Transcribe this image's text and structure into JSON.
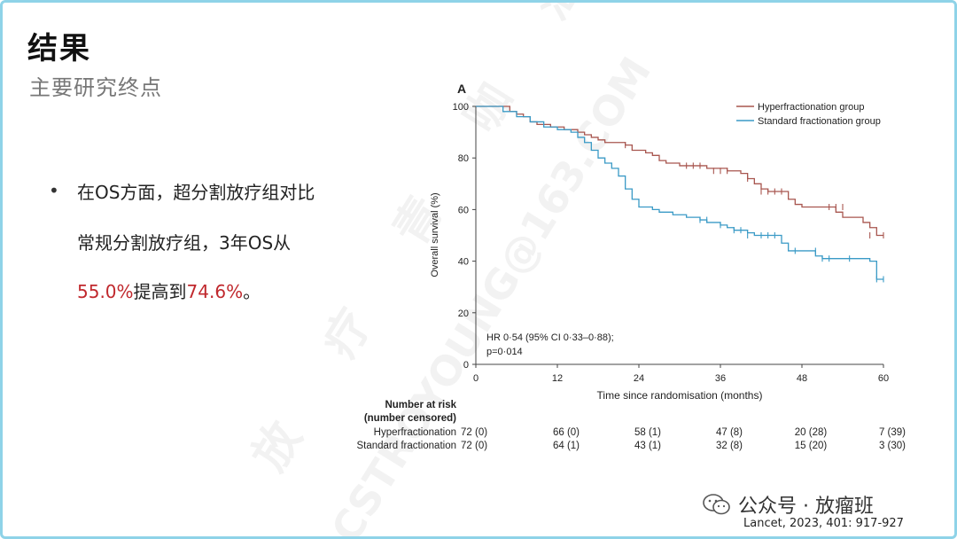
{
  "slide": {
    "title": "结果",
    "subtitle": "主要研究终点",
    "bullet": {
      "line1": "在OS方面，超分割放疗组对比",
      "line2": "常规分割放疗组，3年OS从",
      "val1": "55.0%",
      "mid": "提高到",
      "val2": "74.6%",
      "end": "。"
    },
    "reference": "Lancet, 2023, 401: 917-927",
    "wechat": "公众号 · 放瘤班",
    "watermark": "CSTROYOUNG@163.COM",
    "watermark2": "放 疗 青 咖 汇"
  },
  "chart_data": {
    "type": "line",
    "panel_label": "A",
    "xlabel": "Time since randomisation (months)",
    "ylabel": "Overall survival (%)",
    "xlim": [
      0,
      60
    ],
    "ylim": [
      0,
      100
    ],
    "x_ticks": [
      0,
      12,
      24,
      36,
      48,
      60
    ],
    "y_ticks": [
      0,
      20,
      40,
      60,
      80,
      100
    ],
    "annotation_line1": "HR 0·54 (95% CI 0·33–0·88);",
    "annotation_line2": "p=0·014",
    "legend_position": "top-right",
    "series": [
      {
        "name": "Hyperfractionation group",
        "color": "#a8564f",
        "steps": [
          [
            0,
            100
          ],
          [
            5,
            98
          ],
          [
            6,
            97
          ],
          [
            7,
            96
          ],
          [
            8,
            94
          ],
          [
            9,
            93
          ],
          [
            11,
            92
          ],
          [
            13,
            91
          ],
          [
            15,
            90
          ],
          [
            16,
            89
          ],
          [
            17,
            88
          ],
          [
            18,
            87
          ],
          [
            19,
            86
          ],
          [
            22,
            85
          ],
          [
            23,
            83
          ],
          [
            25,
            82
          ],
          [
            26,
            81
          ],
          [
            27,
            79
          ],
          [
            28,
            78
          ],
          [
            30,
            77
          ],
          [
            34,
            76
          ],
          [
            37,
            75
          ],
          [
            39,
            74
          ],
          [
            40,
            72
          ],
          [
            41,
            70
          ],
          [
            42,
            68
          ],
          [
            43,
            67
          ],
          [
            46,
            64
          ],
          [
            47,
            62
          ],
          [
            48,
            61
          ],
          [
            53,
            59
          ],
          [
            54,
            57
          ],
          [
            57,
            55
          ],
          [
            58,
            53
          ],
          [
            59,
            50
          ],
          [
            60,
            50
          ]
        ],
        "censor": [
          [
            22,
            85
          ],
          [
            31,
            77
          ],
          [
            32,
            77
          ],
          [
            33,
            77
          ],
          [
            35,
            75
          ],
          [
            36,
            75
          ],
          [
            37,
            75
          ],
          [
            40,
            72
          ],
          [
            42,
            67
          ],
          [
            43,
            67
          ],
          [
            44,
            67
          ],
          [
            45,
            67
          ],
          [
            52,
            61
          ],
          [
            53,
            61
          ],
          [
            54,
            61
          ],
          [
            58,
            50
          ],
          [
            60,
            50
          ]
        ]
      },
      {
        "name": "Standard fractionation group",
        "color": "#3a9ac6",
        "steps": [
          [
            0,
            100
          ],
          [
            4,
            98
          ],
          [
            6,
            96
          ],
          [
            8,
            94
          ],
          [
            10,
            92
          ],
          [
            12,
            91
          ],
          [
            14,
            90
          ],
          [
            15,
            88
          ],
          [
            16,
            86
          ],
          [
            17,
            83
          ],
          [
            18,
            80
          ],
          [
            19,
            78
          ],
          [
            20,
            76
          ],
          [
            21,
            73
          ],
          [
            22,
            68
          ],
          [
            23,
            64
          ],
          [
            24,
            61
          ],
          [
            26,
            60
          ],
          [
            27,
            59
          ],
          [
            29,
            58
          ],
          [
            31,
            57
          ],
          [
            33,
            56
          ],
          [
            34,
            55
          ],
          [
            36,
            54
          ],
          [
            37,
            53
          ],
          [
            38,
            52
          ],
          [
            40,
            51
          ],
          [
            41,
            50
          ],
          [
            45,
            47
          ],
          [
            46,
            44
          ],
          [
            50,
            42
          ],
          [
            51,
            41
          ],
          [
            58,
            40
          ],
          [
            59,
            33
          ],
          [
            60,
            33
          ]
        ],
        "censor": [
          [
            33,
            56
          ],
          [
            34,
            56
          ],
          [
            36,
            54
          ],
          [
            38,
            52
          ],
          [
            39,
            52
          ],
          [
            40,
            50
          ],
          [
            42,
            50
          ],
          [
            43,
            50
          ],
          [
            44,
            50
          ],
          [
            47,
            44
          ],
          [
            50,
            44
          ],
          [
            51,
            41
          ],
          [
            52,
            41
          ],
          [
            55,
            41
          ],
          [
            59,
            33
          ],
          [
            60,
            33
          ]
        ]
      }
    ],
    "risk_table": {
      "header1": "Number at risk",
      "header2": "(number censored)",
      "rows": [
        {
          "label": "Hyperfractionation",
          "values": [
            "72 (0)",
            "66 (0)",
            "58 (1)",
            "47 (8)",
            "20 (28)",
            "7 (39)"
          ]
        },
        {
          "label": "Standard fractionation",
          "values": [
            "72 (0)",
            "64 (1)",
            "43 (1)",
            "32 (8)",
            "15 (20)",
            "3 (30)"
          ]
        }
      ]
    }
  }
}
